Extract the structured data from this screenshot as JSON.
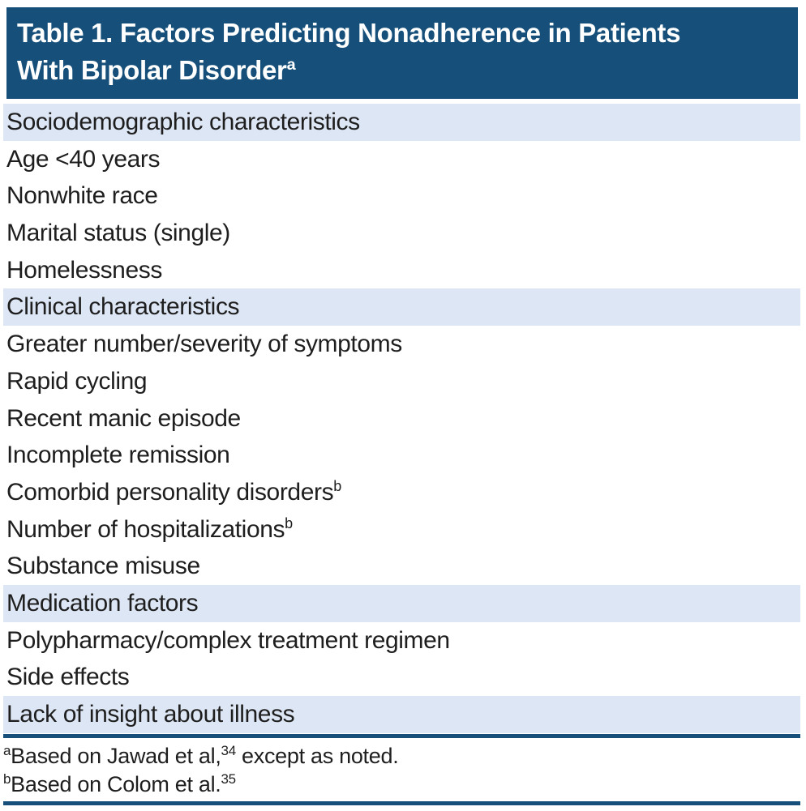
{
  "table": {
    "title": {
      "line1": "Table 1. Factors Predicting Nonadherence in Patients",
      "line2": "With Bipolar Disorder",
      "superscript": "a"
    },
    "rows": [
      {
        "type": "section",
        "text": "Sociodemographic characteristics"
      },
      {
        "type": "item",
        "text": "Age <40 years"
      },
      {
        "type": "item",
        "text": "Nonwhite race"
      },
      {
        "type": "item",
        "text": "Marital status (single)"
      },
      {
        "type": "item",
        "text": "Homelessness"
      },
      {
        "type": "section",
        "text": "Clinical characteristics"
      },
      {
        "type": "item",
        "text": "Greater number/severity of symptoms"
      },
      {
        "type": "item",
        "text": "Rapid cycling"
      },
      {
        "type": "item",
        "text": "Recent manic episode"
      },
      {
        "type": "item",
        "text": "Incomplete remission"
      },
      {
        "type": "item",
        "text": "Comorbid personality disorders",
        "superscript": "b"
      },
      {
        "type": "item",
        "text": "Number of hospitalizations",
        "superscript": "b"
      },
      {
        "type": "item",
        "text": "Substance misuse"
      },
      {
        "type": "section",
        "text": "Medication factors"
      },
      {
        "type": "item",
        "text": "Polypharmacy/complex treatment regimen"
      },
      {
        "type": "item",
        "text": "Side effects"
      },
      {
        "type": "section",
        "text": "Lack of insight about illness"
      }
    ],
    "footnotes": [
      {
        "marker": "a",
        "text": "Based on Jawad et al,",
        "ref": "34",
        "suffix": " except as noted."
      },
      {
        "marker": "b",
        "text": "Based on Colom et al.",
        "ref": "35",
        "suffix": ""
      }
    ],
    "colors": {
      "header_bg": "#154f7a",
      "header_text": "#ffffff",
      "section_bg": "#dde6f4",
      "rule": "#154f7a",
      "text": "#1e1e1e"
    }
  }
}
